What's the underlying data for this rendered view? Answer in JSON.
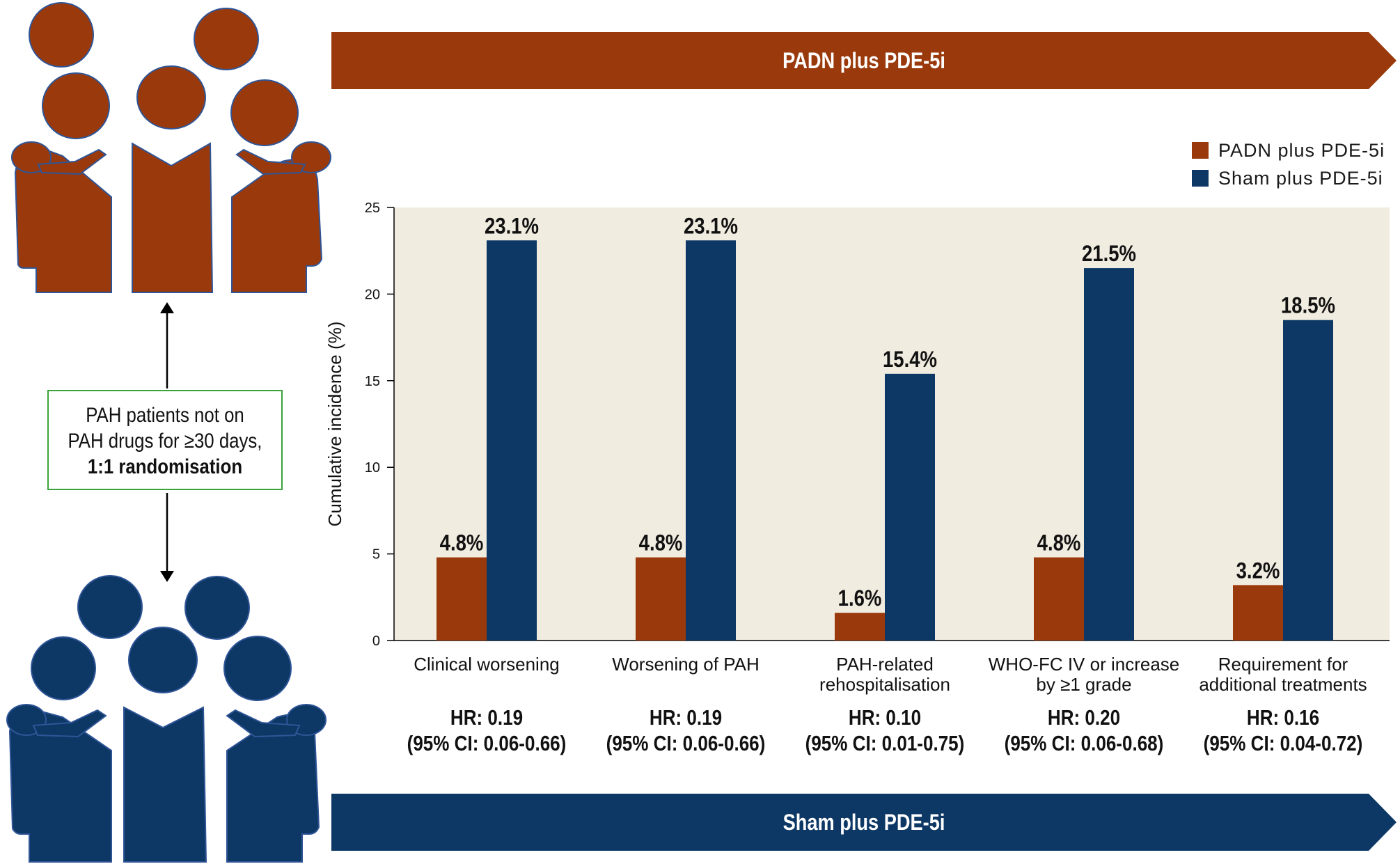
{
  "banners": {
    "top_label": "PADN plus PDE-5i",
    "bottom_label": "Sham plus PDE-5i"
  },
  "colors": {
    "padn": "#9a3a0c",
    "sham": "#0d3865",
    "plot_bg": "#f1ece0",
    "box_border": "#3aa33a"
  },
  "icons": {
    "top_group": "people-group-icon",
    "bottom_group": "people-group-icon",
    "arrow": "double-arrow-icon"
  },
  "info_box": {
    "line1": "PAH patients not on",
    "line2": "PAH drugs for ≥30 days,",
    "line3": "1:1 randomisation"
  },
  "legend": [
    {
      "label": "PADN plus PDE-5i",
      "color": "#9a3a0c"
    },
    {
      "label": "Sham plus PDE-5i",
      "color": "#0d3865"
    }
  ],
  "chart_data": {
    "type": "bar",
    "ylabel": "Cumulative incidence (%)",
    "ylim": [
      0,
      25
    ],
    "yticks": [
      "0",
      "5",
      "10",
      "15",
      "20",
      "25"
    ],
    "categories": [
      [
        "Clinical worsening"
      ],
      [
        "Worsening of PAH"
      ],
      [
        "PAH-related",
        "rehospitalisation"
      ],
      [
        "WHO-FC IV or increase",
        "by ≥1 grade"
      ],
      [
        "Requirement for",
        "additional treatments"
      ]
    ],
    "series": [
      {
        "name": "PADN plus PDE-5i",
        "values": [
          4.8,
          4.8,
          1.6,
          4.8,
          3.2
        ],
        "labels": [
          "4.8%",
          "4.8%",
          "1.6%",
          "4.8%",
          "3.2%"
        ]
      },
      {
        "name": "Sham plus PDE-5i",
        "values": [
          23.1,
          23.1,
          15.4,
          21.5,
          18.5
        ],
        "labels": [
          "23.1%",
          "23.1%",
          "15.4%",
          "21.5%",
          "18.5%"
        ]
      }
    ],
    "annotations": [
      {
        "hr": "HR: 0.19",
        "ci": "(95% CI: 0.06-0.66)"
      },
      {
        "hr": "HR: 0.19",
        "ci": "(95% CI: 0.06-0.66)"
      },
      {
        "hr": "HR: 0.10",
        "ci": "(95% CI: 0.01-0.75)"
      },
      {
        "hr": "HR: 0.20",
        "ci": "(95% CI: 0.06-0.68)"
      },
      {
        "hr": "HR: 0.16",
        "ci": "(95% CI: 0.04-0.72)"
      }
    ],
    "grid": false,
    "legend_position": "top-right"
  }
}
